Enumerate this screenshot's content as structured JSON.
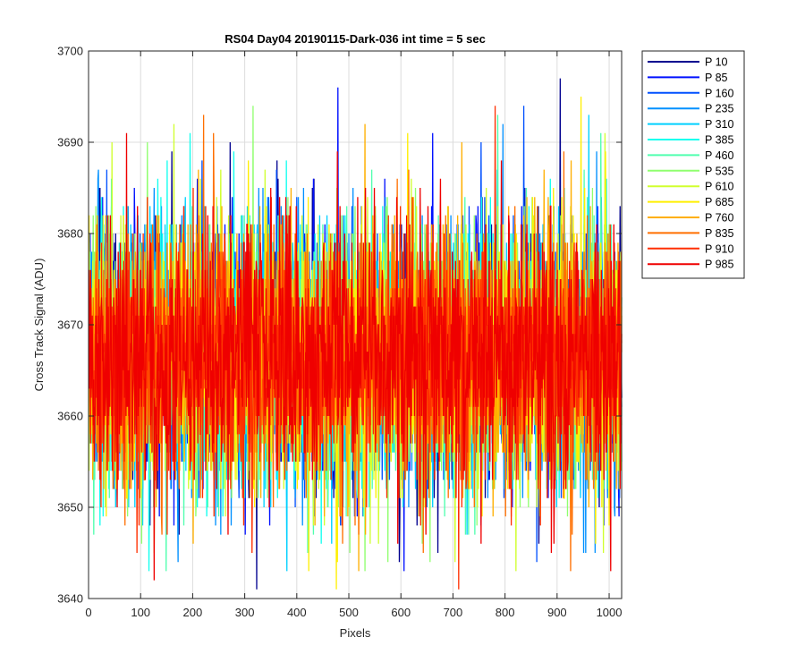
{
  "chart_data": {
    "type": "line",
    "title": "RS04 Day04 20190115-Dark-036 int time = 5 sec",
    "xlabel": "Pixels",
    "ylabel": "Cross Track Signal (ADU)",
    "xlim": [
      0,
      1024
    ],
    "ylim": [
      3640,
      3700
    ],
    "xticks": [
      0,
      100,
      200,
      300,
      400,
      500,
      600,
      700,
      800,
      900,
      1000
    ],
    "yticks": [
      3640,
      3650,
      3660,
      3670,
      3680,
      3690,
      3700
    ],
    "grid": true,
    "legend_position": "outside-top-right",
    "n_points": 1024,
    "noise_model": {
      "mean": 3666.5,
      "std": 7.0,
      "min_observed": 3641,
      "max_observed": 3697
    },
    "series": [
      {
        "name": "P 10",
        "color": "#00008f",
        "mean": 3666.5,
        "std": 7.0,
        "peak": {
          "x": 905,
          "y": 3697
        },
        "trough": {
          "x": 322,
          "y": 3641
        }
      },
      {
        "name": "P 85",
        "color": "#0010ff",
        "mean": 3666.5,
        "std": 7.0,
        "peak": {
          "x": 478,
          "y": 3696
        },
        "trough": {
          "x": 605,
          "y": 3643
        }
      },
      {
        "name": "P 160",
        "color": "#0050ff",
        "mean": 3666.5,
        "std": 7.0,
        "peak": {
          "x": 835,
          "y": 3694
        },
        "trough": {
          "x": 860,
          "y": 3644
        }
      },
      {
        "name": "P 235",
        "color": "#0090ff",
        "mean": 3666.5,
        "std": 7.0,
        "peak": {
          "x": 795,
          "y": 3692
        },
        "trough": {
          "x": 950,
          "y": 3645
        }
      },
      {
        "name": "P 310",
        "color": "#00d0ff",
        "mean": 3666.5,
        "std": 7.0,
        "peak": {
          "x": 960,
          "y": 3693
        },
        "trough": {
          "x": 380,
          "y": 3643
        }
      },
      {
        "name": "P 385",
        "color": "#10ffef",
        "mean": 3666.5,
        "std": 7.0,
        "peak": {
          "x": 150,
          "y": 3688
        },
        "trough": {
          "x": 115,
          "y": 3643
        }
      },
      {
        "name": "P 460",
        "color": "#50ffaf",
        "mean": 3666.5,
        "std": 7.0,
        "peak": {
          "x": 785,
          "y": 3693
        },
        "trough": {
          "x": 420,
          "y": 3645
        }
      },
      {
        "name": "P 535",
        "color": "#90ff6f",
        "mean": 3666.5,
        "std": 7.0,
        "peak": {
          "x": 315,
          "y": 3694
        },
        "trough": {
          "x": 640,
          "y": 3646
        }
      },
      {
        "name": "P 610",
        "color": "#d0ff2f",
        "mean": 3666.5,
        "std": 7.0,
        "peak": {
          "x": 163,
          "y": 3692
        },
        "trough": {
          "x": 540,
          "y": 3646
        }
      },
      {
        "name": "P 685",
        "color": "#ffef00",
        "mean": 3666.5,
        "std": 7.0,
        "peak": {
          "x": 945,
          "y": 3695
        },
        "trough": {
          "x": 475,
          "y": 3641
        }
      },
      {
        "name": "P 760",
        "color": "#ffaf00",
        "mean": 3666.5,
        "std": 7.0,
        "peak": {
          "x": 530,
          "y": 3692
        },
        "trough": {
          "x": 200,
          "y": 3646
        }
      },
      {
        "name": "P 835",
        "color": "#ff6f00",
        "mean": 3666.5,
        "std": 7.0,
        "peak": {
          "x": 220,
          "y": 3693
        },
        "trough": {
          "x": 925,
          "y": 3643
        }
      },
      {
        "name": "P 910",
        "color": "#ff2f00",
        "mean": 3666.5,
        "std": 7.0,
        "peak": {
          "x": 780,
          "y": 3694
        },
        "trough": {
          "x": 710,
          "y": 3641
        }
      },
      {
        "name": "P 985",
        "color": "#ef0000",
        "mean": 3666.5,
        "std": 7.0,
        "peak": {
          "x": 72,
          "y": 3691
        },
        "trough": {
          "x": 125,
          "y": 3642
        }
      }
    ]
  }
}
